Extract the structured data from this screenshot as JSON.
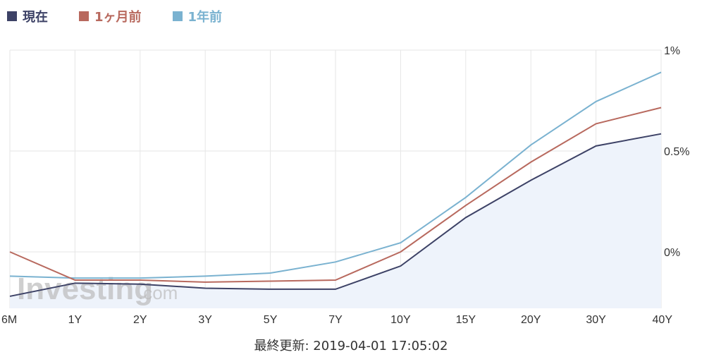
{
  "legend": [
    {
      "label": "現在",
      "color": "#3d4266"
    },
    {
      "label": "1ヶ月前",
      "color": "#b8695e"
    },
    {
      "label": "1年前",
      "color": "#7ab2d0"
    }
  ],
  "watermark": {
    "brand": "Investing",
    "suffix": ".com"
  },
  "footer": {
    "text": "最終更新: 2019-04-01 17:05:02"
  },
  "chart_data": {
    "type": "line",
    "categories": [
      "6M",
      "1Y",
      "2Y",
      "3Y",
      "5Y",
      "7Y",
      "10Y",
      "15Y",
      "20Y",
      "30Y",
      "40Y"
    ],
    "yticks": [
      {
        "value": 1.0,
        "label": "1%"
      },
      {
        "value": 0.5,
        "label": "0.5%"
      },
      {
        "value": 0.0,
        "label": "0%"
      }
    ],
    "ylim": [
      -0.27,
      1.0
    ],
    "grid": true,
    "legend_position": "top-left",
    "series": [
      {
        "name": "1年前",
        "color": "#7ab2d0",
        "values": [
          -0.12,
          -0.13,
          -0.13,
          -0.12,
          -0.105,
          -0.05,
          0.045,
          0.27,
          0.53,
          0.745,
          0.89
        ]
      },
      {
        "name": "1ヶ月前",
        "color": "#b8695e",
        "values": [
          0.0,
          -0.14,
          -0.14,
          -0.15,
          -0.145,
          -0.14,
          0.0,
          0.23,
          0.445,
          0.635,
          0.715
        ]
      },
      {
        "name": "現在",
        "color": "#3d4266",
        "values": [
          -0.22,
          -0.155,
          -0.16,
          -0.18,
          -0.185,
          -0.185,
          -0.07,
          0.17,
          0.355,
          0.525,
          0.585
        ],
        "filled": true,
        "fill": "#eef3fb"
      }
    ]
  }
}
